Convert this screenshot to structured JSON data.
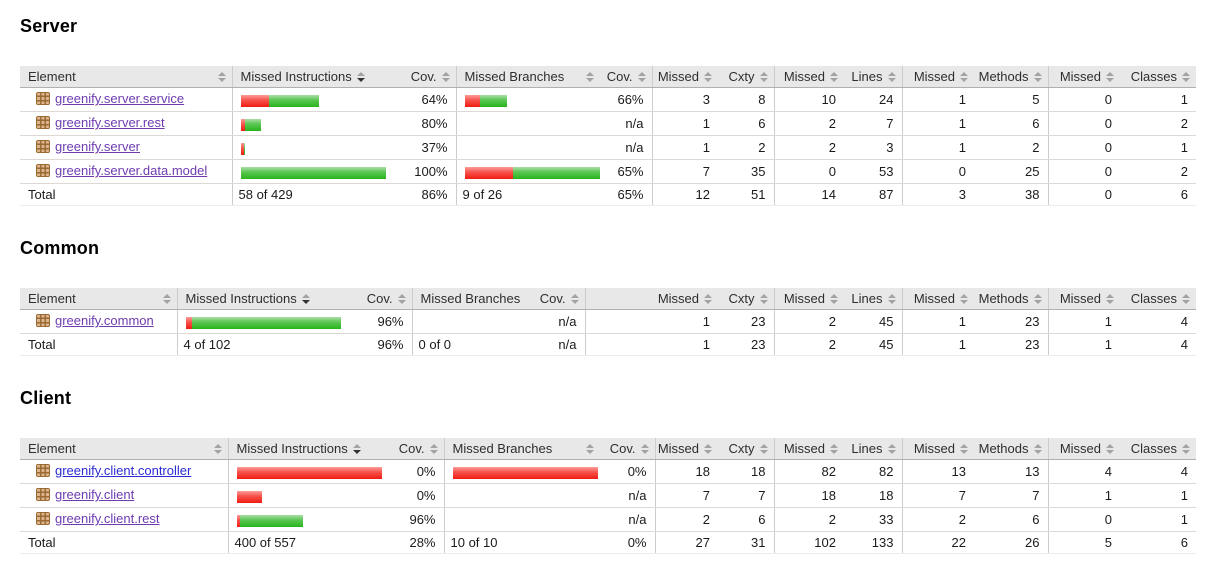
{
  "colors": {
    "header_bg": "#e8e8e8",
    "link": "#2b2bd4",
    "link_visited": "#6e3cb0",
    "bar_red": "#f01c14",
    "bar_green": "#27b41c",
    "header_border": "#b0b0b0",
    "row_border": "#dcd9d4"
  },
  "column_headers": [
    "Element",
    "Missed Instructions",
    "Cov.",
    "Missed Branches",
    "Cov.",
    "Missed",
    "Cxty",
    "Missed",
    "Lines",
    "Missed",
    "Methods",
    "Missed",
    "Classes"
  ],
  "sort": {
    "active_column": "Missed Instructions",
    "direction": "desc"
  },
  "sections": [
    {
      "title": "Server",
      "rows": [
        {
          "element": "greenify.server.service",
          "visited": true,
          "instr_bar": {
            "red": 28,
            "green": 50
          },
          "instr_cov": "64%",
          "branch_bar": {
            "red": 15,
            "green": 27
          },
          "branch_cov": "66%",
          "metrics": [
            "3",
            "8",
            "10",
            "24",
            "1",
            "5",
            "0",
            "1"
          ]
        },
        {
          "element": "greenify.server.rest",
          "visited": true,
          "instr_bar": {
            "red": 4,
            "green": 16
          },
          "instr_cov": "80%",
          "branch_bar": null,
          "branch_cov": "n/a",
          "metrics": [
            "1",
            "6",
            "2",
            "7",
            "1",
            "6",
            "0",
            "2"
          ]
        },
        {
          "element": "greenify.server",
          "visited": true,
          "instr_bar": {
            "red": 3,
            "green": 1
          },
          "instr_cov": "37%",
          "branch_bar": null,
          "branch_cov": "n/a",
          "metrics": [
            "1",
            "2",
            "2",
            "3",
            "1",
            "2",
            "0",
            "1"
          ]
        },
        {
          "element": "greenify.server.data.model",
          "visited": true,
          "instr_bar": {
            "red": 0,
            "green": 145
          },
          "instr_cov": "100%",
          "branch_bar": {
            "red": 48,
            "green": 90
          },
          "branch_cov": "65%",
          "metrics": [
            "7",
            "35",
            "0",
            "53",
            "0",
            "25",
            "0",
            "2"
          ]
        }
      ],
      "total": {
        "label": "Total",
        "instr_text": "58 of 429",
        "instr_cov": "86%",
        "branch_text": "9 of 26",
        "branch_cov": "65%",
        "metrics": [
          "12",
          "51",
          "14",
          "87",
          "3",
          "38",
          "0",
          "6"
        ]
      }
    },
    {
      "title": "Common",
      "rows": [
        {
          "element": "greenify.common",
          "visited": true,
          "instr_bar": {
            "red": 6,
            "green": 149
          },
          "instr_cov": "96%",
          "branch_bar": null,
          "branch_cov": "n/a",
          "metrics": [
            "1",
            "23",
            "2",
            "45",
            "1",
            "23",
            "1",
            "4"
          ]
        }
      ],
      "total": {
        "label": "Total",
        "instr_text": "4 of 102",
        "instr_cov": "96%",
        "branch_text": "0 of 0",
        "branch_cov": "n/a",
        "metrics": [
          "1",
          "23",
          "2",
          "45",
          "1",
          "23",
          "1",
          "4"
        ]
      }
    },
    {
      "title": "Client",
      "rows": [
        {
          "element": "greenify.client.controller",
          "visited": false,
          "instr_bar": {
            "red": 145,
            "green": 0
          },
          "instr_cov": "0%",
          "branch_bar": {
            "red": 145,
            "green": 0
          },
          "branch_cov": "0%",
          "metrics": [
            "18",
            "18",
            "82",
            "82",
            "13",
            "13",
            "4",
            "4"
          ]
        },
        {
          "element": "greenify.client",
          "visited": true,
          "instr_bar": {
            "red": 25,
            "green": 0
          },
          "instr_cov": "0%",
          "branch_bar": null,
          "branch_cov": "n/a",
          "metrics": [
            "7",
            "7",
            "18",
            "18",
            "7",
            "7",
            "1",
            "1"
          ]
        },
        {
          "element": "greenify.client.rest",
          "visited": true,
          "instr_bar": {
            "red": 3,
            "green": 63
          },
          "instr_cov": "96%",
          "branch_bar": null,
          "branch_cov": "n/a",
          "metrics": [
            "2",
            "6",
            "2",
            "33",
            "2",
            "6",
            "0",
            "1"
          ]
        }
      ],
      "total": {
        "label": "Total",
        "instr_text": "400 of 557",
        "instr_cov": "28%",
        "branch_text": "10 of 10",
        "branch_cov": "0%",
        "metrics": [
          "27",
          "31",
          "102",
          "133",
          "22",
          "26",
          "5",
          "6"
        ]
      }
    }
  ]
}
